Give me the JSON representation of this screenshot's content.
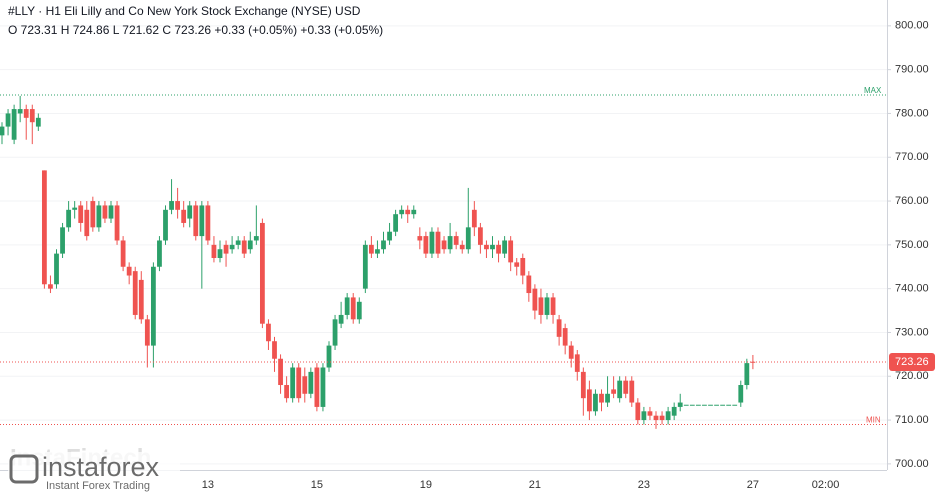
{
  "chart_data": {
    "type": "candlestick",
    "title": "#LLY · H1 Eli Lilly and Co New York Stock Exchange (NYSE) USD",
    "subtitle": "O 723.31 H 724.86 L 721.62 C 723.26 +0.33 (+0.05%) +0.33 (+0.05%)",
    "watermark": "InstaFintech",
    "brand": "instaforex",
    "brand_tagline": "Instant Forex Trading",
    "up_color": "#2ca06a",
    "down_color": "#ef5350",
    "grid": true,
    "ylim": [
      698.6,
      805.9
    ],
    "yticks": [
      {
        "value": 700,
        "label": "700.00"
      },
      {
        "value": 710,
        "label": "710.00"
      },
      {
        "value": 720,
        "label": "720.00"
      },
      {
        "value": 730,
        "label": "730.00"
      },
      {
        "value": 740,
        "label": "740.00"
      },
      {
        "value": 750,
        "label": "750.00"
      },
      {
        "value": 760,
        "label": "760.00"
      },
      {
        "value": 770,
        "label": "770.00"
      },
      {
        "value": 780,
        "label": "780.00"
      },
      {
        "value": 790,
        "label": "790.00"
      },
      {
        "value": 800,
        "label": "800.00"
      }
    ],
    "max_line": {
      "label": "MAX",
      "value": 784.2,
      "color": "#2ca06a"
    },
    "min_line": {
      "label": "MIN",
      "value": 709,
      "color": "#ef5350"
    },
    "last_price": {
      "value": 723.26,
      "color": "#ef5350"
    },
    "categories": [
      null,
      null,
      null,
      null,
      null,
      null,
      null,
      null,
      null,
      null,
      null,
      null,
      null,
      null,
      null,
      null,
      null,
      null,
      null,
      null,
      null,
      null,
      null,
      null,
      null,
      null,
      null,
      null,
      null,
      null,
      null,
      null,
      null,
      null,
      "13",
      null,
      null,
      null,
      null,
      null,
      null,
      null,
      null,
      null,
      null,
      null,
      null,
      null,
      null,
      null,
      null,
      null,
      "15",
      null,
      null,
      null,
      null,
      null,
      null,
      null,
      null,
      null,
      null,
      null,
      null,
      null,
      null,
      null,
      null,
      null,
      "19",
      null,
      null,
      null,
      null,
      null,
      null,
      null,
      null,
      null,
      null,
      null,
      null,
      null,
      null,
      null,
      null,
      null,
      "21",
      null,
      null,
      null,
      null,
      null,
      null,
      null,
      null,
      null,
      null,
      null,
      null,
      null,
      null,
      null,
      null,
      null,
      "23",
      null,
      null,
      null,
      null,
      null,
      null,
      null,
      null,
      null,
      null,
      null,
      null,
      null,
      null,
      null,
      null,
      null,
      "27",
      null,
      null,
      null,
      null,
      null,
      null,
      null,
      null,
      null,
      null,
      null,
      "02:00"
    ],
    "open": [
      775,
      777,
      774,
      780,
      781,
      781,
      777,
      767,
      741,
      741,
      748,
      754,
      758,
      759,
      758,
      760,
      754,
      759,
      756,
      759,
      751,
      745,
      744,
      742,
      733,
      727,
      745,
      751,
      758,
      760,
      758,
      756,
      759,
      752,
      759,
      750,
      747,
      750,
      749,
      750,
      751,
      749,
      751,
      755,
      732,
      728,
      724,
      718,
      715,
      722,
      720,
      716,
      722,
      713,
      722,
      727,
      732,
      734,
      738,
      733,
      740,
      750,
      748,
      749,
      751,
      753,
      757,
      758,
      757,
      752,
      752,
      748,
      753,
      751,
      749,
      752,
      750,
      749,
      758,
      754,
      750,
      749,
      750,
      748,
      751,
      746,
      747,
      743,
      740,
      738,
      734,
      738,
      733,
      731,
      727,
      725,
      721,
      717,
      712,
      716,
      714,
      717,
      715,
      719,
      719,
      714,
      710,
      712,
      711,
      711,
      710,
      711,
      713,
      713.5,
      713.5,
      713.5,
      713.5,
      713.5,
      713.5,
      713.5,
      713.5,
      713.5,
      714,
      718,
      723.31,
      null,
      null,
      null,
      null,
      null,
      null,
      null,
      null,
      null,
      null,
      null,
      null
    ],
    "high": [
      778,
      781,
      782,
      784,
      782,
      782,
      780,
      767,
      743,
      749,
      755,
      760,
      760,
      760,
      760,
      761,
      760,
      760,
      760,
      760,
      752,
      746,
      745,
      744,
      734,
      746,
      752,
      759,
      765,
      763,
      760,
      760,
      760,
      760,
      760,
      752,
      751,
      751,
      752,
      752,
      752,
      753,
      759,
      756,
      733,
      729,
      725,
      720,
      723,
      723,
      722,
      722,
      723,
      723,
      728,
      734,
      737,
      739,
      739,
      738,
      751,
      752,
      751,
      753,
      755,
      758,
      759,
      759,
      759,
      754,
      753,
      754,
      754,
      752,
      755,
      753,
      751,
      763,
      760,
      755,
      751,
      752,
      751,
      752,
      752,
      747,
      748,
      744,
      741,
      740,
      739,
      739,
      734,
      732,
      728,
      726,
      722,
      719,
      717,
      717,
      720,
      720,
      720,
      720,
      720,
      715,
      713,
      713,
      712,
      712,
      713,
      714,
      716,
      713.5,
      713.5,
      713.5,
      713.5,
      713.5,
      713.5,
      713.5,
      713.5,
      713.5,
      719,
      724,
      724.86,
      null,
      null,
      null,
      null,
      null,
      null,
      null,
      null,
      null,
      null,
      null,
      null
    ],
    "low": [
      773,
      775,
      773,
      778,
      774,
      773,
      776,
      740,
      739,
      740,
      747,
      753,
      756,
      753,
      751,
      753,
      753,
      755,
      755,
      750,
      744,
      741,
      733,
      732,
      722,
      722,
      744,
      750,
      757,
      756,
      754,
      754,
      751,
      740,
      750,
      746,
      746,
      745,
      748,
      749,
      747,
      748,
      750,
      731,
      726,
      721,
      716,
      714,
      714,
      714,
      714,
      715,
      712,
      712,
      721,
      726,
      731,
      733,
      732,
      732,
      739,
      747,
      747,
      748,
      750,
      752,
      756,
      755,
      756,
      749,
      747,
      747,
      747,
      748,
      748,
      749,
      748,
      748,
      752,
      748,
      747,
      747,
      746,
      747,
      744,
      743,
      741,
      737,
      733,
      732,
      733,
      732,
      727,
      725,
      722,
      719,
      711,
      710,
      711,
      712,
      713,
      715,
      714,
      715,
      713,
      709,
      709,
      710,
      708,
      709,
      709,
      710,
      712,
      713.5,
      713.5,
      713.5,
      713.5,
      713.5,
      713.5,
      713.5,
      713.5,
      713.5,
      713,
      717,
      721.62,
      null,
      null,
      null,
      null,
      null,
      null,
      null,
      null,
      null,
      null,
      null,
      null
    ],
    "close": [
      777,
      780,
      781,
      781,
      779,
      778,
      779,
      741,
      740,
      748,
      754,
      758,
      758.5,
      755,
      752,
      754,
      759,
      756,
      759,
      751,
      745,
      743,
      734,
      733,
      727,
      745,
      751,
      758,
      760,
      758,
      755,
      759,
      752,
      759,
      751,
      747,
      749,
      748,
      750,
      751,
      748,
      751,
      752,
      732,
      728,
      724,
      718,
      715,
      722,
      715,
      716,
      721,
      713,
      722,
      727,
      733,
      734,
      738,
      733,
      737,
      750,
      748,
      749,
      751,
      753,
      757,
      758,
      757,
      758,
      751,
      748,
      753,
      748,
      749,
      752,
      750,
      749,
      754,
      754,
      750,
      749,
      750,
      748,
      751,
      746,
      745,
      743,
      739,
      735,
      734,
      738,
      734,
      729,
      727,
      724,
      721,
      715,
      712,
      716,
      714,
      716,
      716,
      719,
      716,
      714,
      710,
      712,
      711,
      710,
      710,
      712,
      713,
      714,
      713.5,
      713.5,
      713.5,
      713.5,
      713.5,
      713.5,
      713.5,
      713.5,
      713.5,
      718,
      723,
      723.26,
      null,
      null,
      null,
      null,
      null,
      null,
      null,
      null,
      null,
      null,
      null,
      null
    ]
  }
}
